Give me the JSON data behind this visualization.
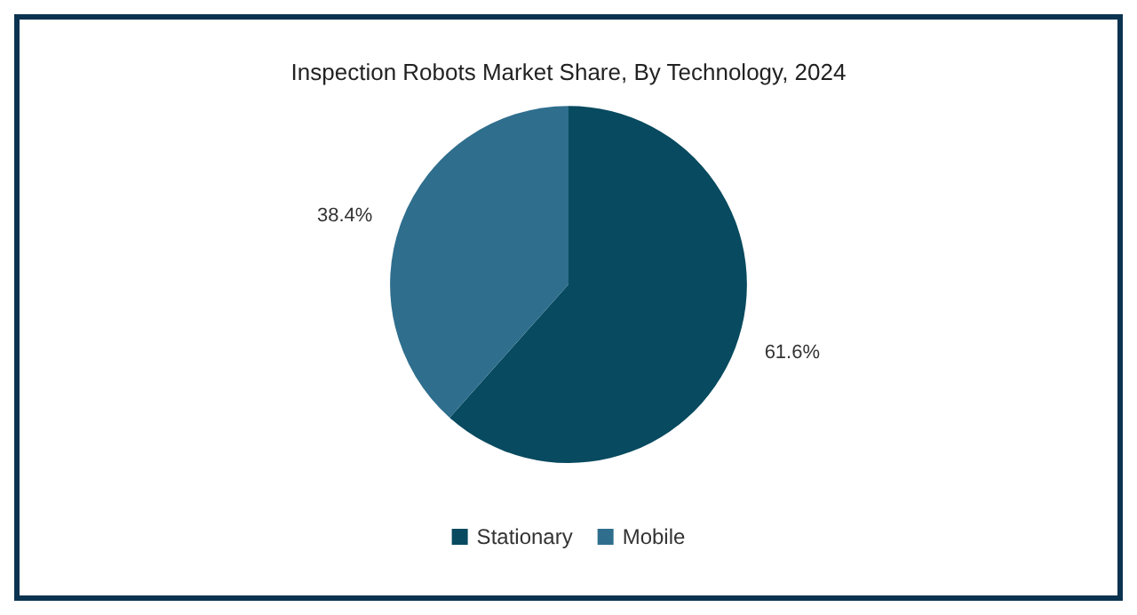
{
  "chart_data": {
    "type": "pie",
    "title": "Inspection Robots Market Share, By Technology, 2024",
    "categories": [
      "Stationary",
      "Mobile"
    ],
    "values": [
      61.6,
      38.4
    ],
    "colors": [
      "#084a5f",
      "#2f6e8d"
    ],
    "value_labels": [
      "61.6%",
      "38.4%"
    ],
    "legend": "bottom"
  }
}
